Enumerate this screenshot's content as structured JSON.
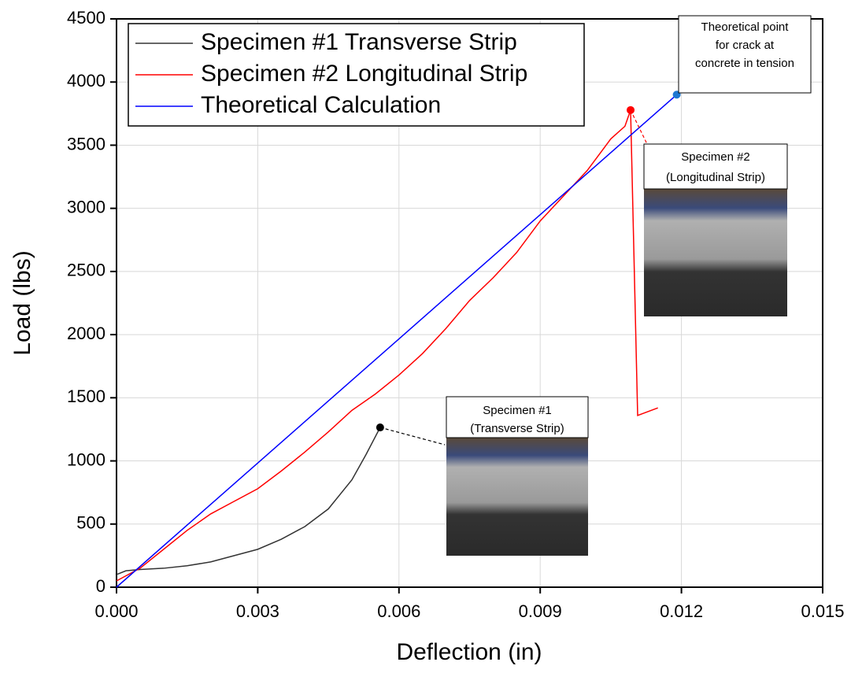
{
  "chart_data": {
    "type": "line",
    "xlabel": "Deflection (in)",
    "ylabel": "Load (lbs)",
    "xlim": [
      0,
      0.015
    ],
    "ylim": [
      0,
      4500
    ],
    "xticks": [
      {
        "value": 0,
        "label": "0.000"
      },
      {
        "value": 0.003,
        "label": "0.003"
      },
      {
        "value": 0.006,
        "label": "0.006"
      },
      {
        "value": 0.009,
        "label": "0.009"
      },
      {
        "value": 0.012,
        "label": "0.012"
      },
      {
        "value": 0.015,
        "label": "0.015"
      }
    ],
    "yticks": [
      0,
      500,
      1000,
      1500,
      2000,
      2500,
      3000,
      3500,
      4000,
      4500
    ],
    "grid": true,
    "legend": "upper left",
    "series": [
      {
        "name": "Specimen #1 Transverse Strip",
        "color": "#333333",
        "x": [
          0,
          0.0002,
          0.0005,
          0.001,
          0.0015,
          0.002,
          0.0025,
          0.003,
          0.0035,
          0.004,
          0.0045,
          0.005,
          0.0053,
          0.0056
        ],
        "values": [
          100,
          130,
          140,
          150,
          170,
          200,
          250,
          300,
          380,
          480,
          620,
          850,
          1050,
          1265
        ]
      },
      {
        "name": "Specimen #2 Longitudinal Strip",
        "color": "#ff0000",
        "x": [
          0,
          0.0005,
          0.001,
          0.0015,
          0.002,
          0.0025,
          0.003,
          0.0035,
          0.004,
          0.0045,
          0.005,
          0.0055,
          0.006,
          0.0065,
          0.007,
          0.0075,
          0.008,
          0.0085,
          0.009,
          0.0095,
          0.01,
          0.0105,
          0.0108,
          0.01092,
          0.01107,
          0.0115
        ],
        "values": [
          50,
          150,
          300,
          450,
          580,
          680,
          780,
          920,
          1070,
          1230,
          1400,
          1530,
          1680,
          1850,
          2050,
          2270,
          2450,
          2650,
          2900,
          3100,
          3300,
          3550,
          3650,
          3778,
          1360,
          1420
        ]
      },
      {
        "name": "Theoretical Calculation",
        "color": "#0000ff",
        "x": [
          0,
          0.0119
        ],
        "values": [
          0,
          3900
        ]
      }
    ],
    "annotations": [
      [
        "Theoretical point",
        "for crack at",
        "concrete in tension"
      ],
      [
        "Specimen #1",
        "(Transverse Strip)"
      ],
      [
        "Specimen #2",
        "(Longitudinal Strip)"
      ]
    ]
  }
}
